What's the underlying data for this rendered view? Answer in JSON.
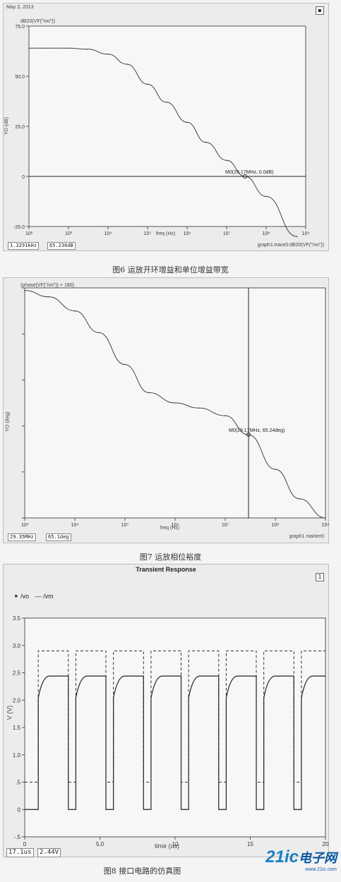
{
  "chart_data": [
    {
      "type": "line",
      "title": "",
      "date_label": "May 3, 2013",
      "trace_label": "dB20(VF(\"/vo\"))",
      "xlabel": "freq (Hz)",
      "ylabel": "YO (dB)",
      "xscale": "log",
      "xlim": [
        100,
        1000000000
      ],
      "ylim": [
        -25,
        75
      ],
      "x_tick_labels": [
        "10²",
        "10³",
        "10⁴",
        "10⁵",
        "10⁶",
        "10⁷",
        "10⁸",
        "10⁹"
      ],
      "y_tick_labels": [
        "75.0",
        "50.0",
        "25.0",
        "0",
        "-25.0"
      ],
      "series": [
        {
          "x": [
            100,
            300,
            1000,
            3000,
            10000,
            30000,
            100000,
            300000,
            1000000,
            3000000,
            10000000,
            29170000,
            100000000,
            600000000
          ],
          "y": [
            64,
            64,
            64,
            63.5,
            61,
            56,
            46,
            37,
            27,
            17,
            8,
            0,
            -10,
            -30
          ]
        }
      ],
      "reference_lines": [
        {
          "axis": "y",
          "value": 0
        }
      ],
      "markers": [
        {
          "label": "M0(29.17MHz, 0.0dB)",
          "x": 29170000,
          "y": 0
        }
      ],
      "status_left": "1.3291kHz",
      "status_mid": "65.236dB",
      "status_right": "graph1.trace0:dB20(VF(\"/vo\"))",
      "caption": "图6  运放开环增益和单位增益带宽"
    },
    {
      "type": "line",
      "title": "",
      "trace_label": "(phase(VF(\"/vo\")) + 180)",
      "xlabel": "freq (Hz)",
      "ylabel": "YO (deg)",
      "xscale": "log",
      "xlim": [
        1000,
        1000000000
      ],
      "ylim": [
        0,
        180
      ],
      "x_tick_labels": [
        "10³",
        "10⁴",
        "10⁵",
        "10⁶",
        "10⁷",
        "10⁸",
        "10⁹"
      ],
      "y_tick_labels": [
        "",
        "",
        "",
        "",
        "",
        ""
      ],
      "series": [
        {
          "x": [
            1000,
            3000,
            10000,
            30000,
            100000,
            300000,
            1000000,
            3000000,
            10000000,
            29170000,
            100000000,
            300000000,
            1000000000
          ],
          "y": [
            178,
            173,
            162,
            145,
            120,
            98,
            90,
            86,
            80,
            65,
            38,
            15,
            0
          ]
        }
      ],
      "reference_lines": [
        {
          "axis": "x",
          "value": 29170000
        }
      ],
      "markers": [
        {
          "label": "M0(29.17MHz, 65.24deg)",
          "x": 29170000,
          "y": 65.24
        }
      ],
      "status_left": "29.35MHz",
      "status_mid": "65.1deg",
      "status_right": "graph1 marker0",
      "caption": "图7  运放相位裕度"
    },
    {
      "type": "line",
      "title": "Transient Response",
      "xlabel": "time (us)",
      "ylabel": "V (V)",
      "xlim": [
        0,
        20
      ],
      "ylim": [
        -0.5,
        3.5
      ],
      "x_ticks": [
        0,
        5,
        10,
        15,
        20
      ],
      "x_tick_labels": [
        "0",
        "5.0",
        "10",
        "15",
        "20"
      ],
      "y_ticks": [
        -0.5,
        0,
        0.5,
        1.0,
        1.5,
        2.0,
        2.5,
        3.0,
        3.5
      ],
      "y_tick_labels": [
        "-.5",
        "0",
        ".5",
        "1.0",
        "1.5",
        "2.0",
        "2.5",
        "3.0",
        "3.5"
      ],
      "legend": [
        "/vo",
        "/vm"
      ],
      "legend_position": "top-left",
      "pulse": {
        "period": 2.5,
        "width": 2.0,
        "first_rise": 0.9
      },
      "series": [
        {
          "name": "/vo",
          "high": 2.44,
          "low": 0,
          "style": "solid"
        },
        {
          "name": "/vm",
          "high": 2.9,
          "low": 0.5,
          "style": "dashed"
        }
      ],
      "status_left": "17.1us",
      "status_mid": "2.44V",
      "panel_number": "1",
      "caption": "图8  接口电路的仿真图"
    }
  ],
  "watermark": {
    "text_a": "21ic",
    "text_b": "电子网",
    "url": "www.21ic.com",
    "color_a": "#1a7fc4",
    "color_b": "#0d5aa0"
  }
}
